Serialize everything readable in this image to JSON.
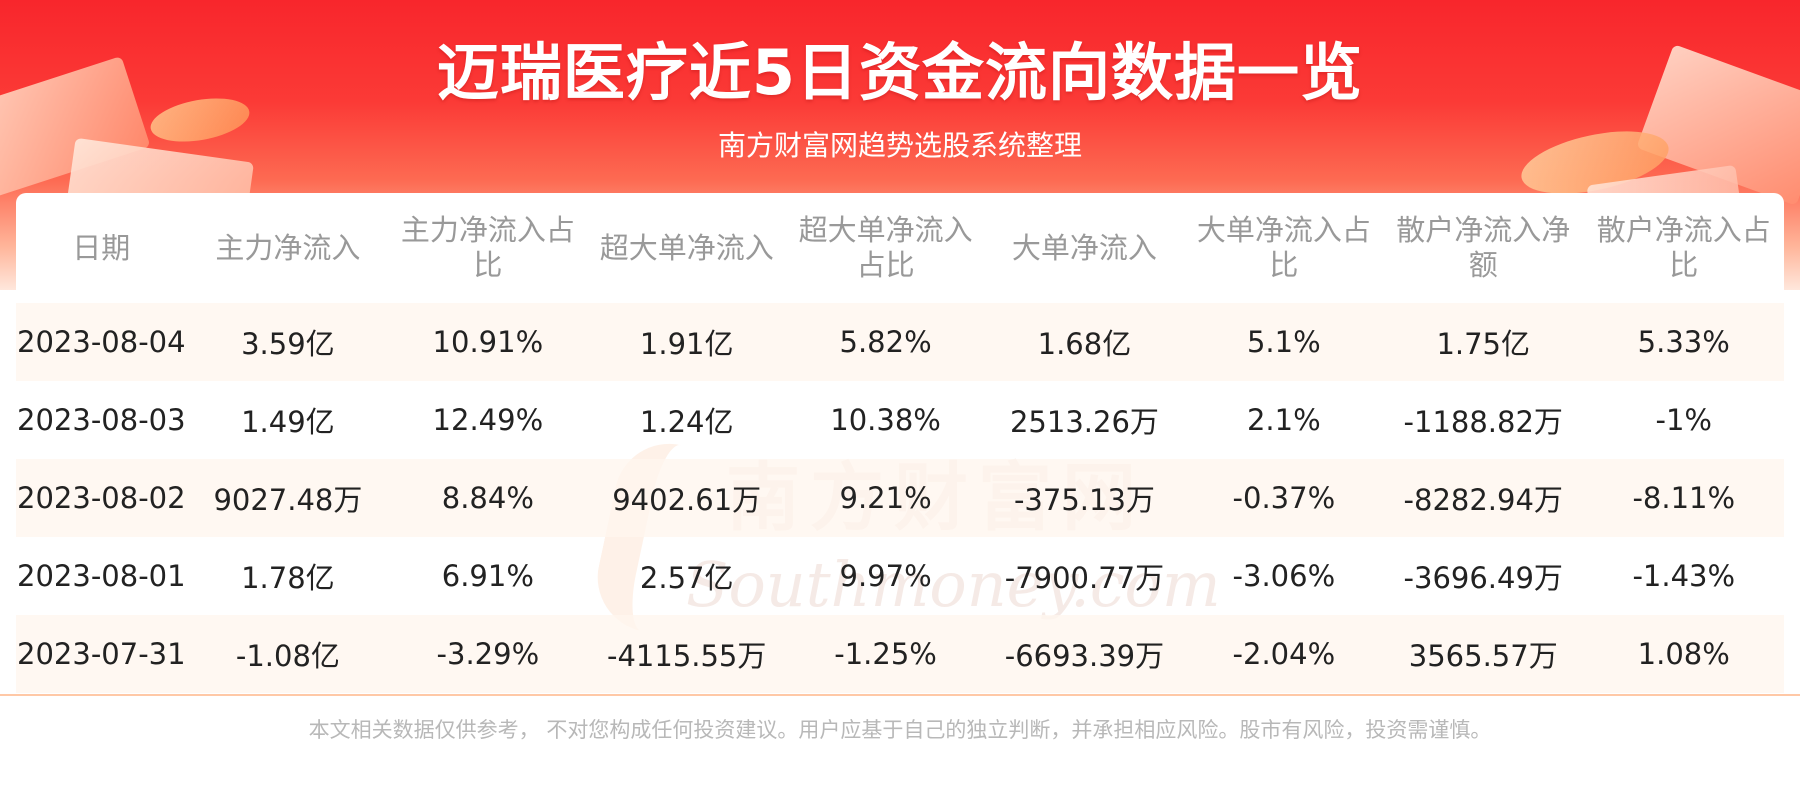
{
  "header": {
    "title": "迈瑞医疗近5日资金流向数据一览",
    "subtitle": "南方财富网趋势选股系统整理"
  },
  "watermark": {
    "cn": "南方财富网",
    "en": "Southmoney.com"
  },
  "table": {
    "columns": [
      "日期",
      "主力净流入",
      "主力净流入占比",
      "超大单净流入",
      "超大单净流入占比",
      "大单净流入",
      "大单净流入占比",
      "散户净流入净额",
      "散户净流入占比"
    ],
    "rows": [
      [
        "2023-08-04",
        "3.59亿",
        "10.91%",
        "1.91亿",
        "5.82%",
        "1.68亿",
        "5.1%",
        "1.75亿",
        "5.33%"
      ],
      [
        "2023-08-03",
        "1.49亿",
        "12.49%",
        "1.24亿",
        "10.38%",
        "2513.26万",
        "2.1%",
        "-1188.82万",
        "-1%"
      ],
      [
        "2023-08-02",
        "9027.48万",
        "8.84%",
        "9402.61万",
        "9.21%",
        "-375.13万",
        "-0.37%",
        "-8282.94万",
        "-8.11%"
      ],
      [
        "2023-08-01",
        "1.78亿",
        "6.91%",
        "2.57亿",
        "9.97%",
        "-7900.77万",
        "-3.06%",
        "-3696.49万",
        "-1.43%"
      ],
      [
        "2023-07-31",
        "-1.08亿",
        "-3.29%",
        "-4115.55万",
        "-1.25%",
        "-6693.39万",
        "-2.04%",
        "3565.57万",
        "1.08%"
      ]
    ]
  },
  "footer": {
    "disclaimer": "本文相关数据仅供参考， 不对您构成任何投资建议。用户应基于自己的独立判断，并承担相应风险。股市有风险，投资需谨慎。"
  },
  "colors": {
    "banner_red": "#f8262c",
    "row_tint": "#fff6ee",
    "header_text": "#999999",
    "body_text": "#222222"
  }
}
